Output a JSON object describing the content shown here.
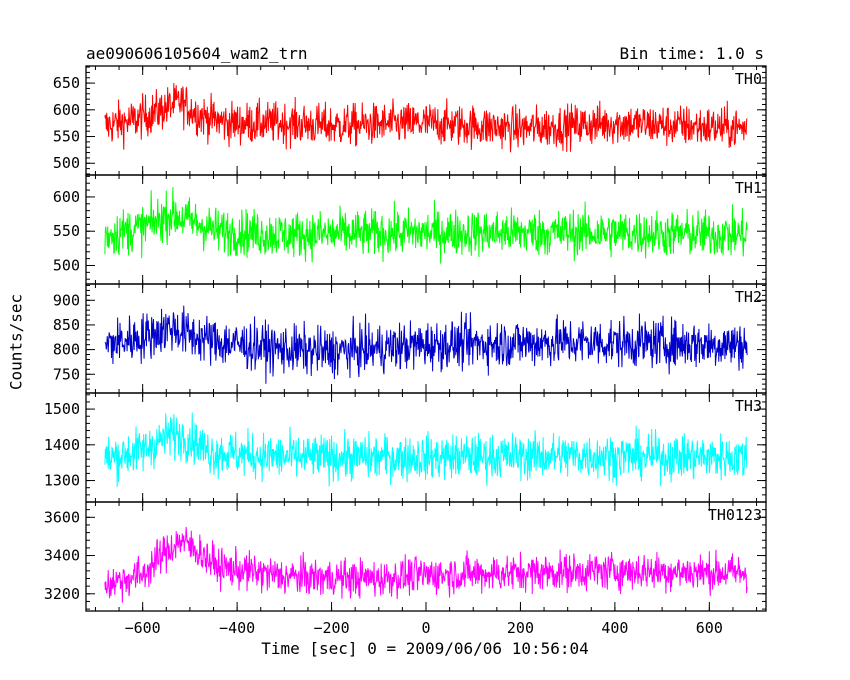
{
  "chart_data": {
    "type": "line",
    "title": "ae090606105604_wam2_trn",
    "annotation": "Bin time: 1.0 s",
    "xlabel": "Time [sec] 0 = 2009/06/06 10:56:04",
    "ylabel": "Counts/sec",
    "xlim": [
      -720,
      720
    ],
    "xticks": [
      -600,
      -400,
      -200,
      0,
      200,
      400,
      600
    ],
    "x_range_of_data": [
      -680,
      680
    ],
    "bin_time_s": 1.0,
    "shared_x_axis": true,
    "panels": [
      {
        "name": "TH0",
        "color": "#ff0000",
        "ylim": [
          478,
          682
        ],
        "yticks": [
          500,
          550,
          600,
          650
        ],
        "profile": [
          [
            -680,
            570
          ],
          [
            -620,
            580
          ],
          [
            -560,
            600
          ],
          [
            -520,
            615
          ],
          [
            -480,
            590
          ],
          [
            -420,
            575
          ],
          [
            -300,
            575
          ],
          [
            -200,
            570
          ],
          [
            0,
            575
          ],
          [
            200,
            565
          ],
          [
            400,
            575
          ],
          [
            680,
            565
          ]
        ],
        "noise": 28
      },
      {
        "name": "TH1",
        "color": "#00ff00",
        "ylim": [
          473,
          632
        ],
        "yticks": [
          500,
          550,
          600
        ],
        "profile": [
          [
            -680,
            545
          ],
          [
            -600,
            555
          ],
          [
            -540,
            575
          ],
          [
            -500,
            565
          ],
          [
            -440,
            550
          ],
          [
            -300,
            545
          ],
          [
            0,
            548
          ],
          [
            300,
            548
          ],
          [
            680,
            545
          ]
        ],
        "noise": 24
      },
      {
        "name": "TH2",
        "color": "#0000cc",
        "ylim": [
          712,
          933
        ],
        "yticks": [
          750,
          800,
          850,
          900
        ],
        "profile": [
          [
            -680,
            810
          ],
          [
            -600,
            825
          ],
          [
            -540,
            845
          ],
          [
            -500,
            830
          ],
          [
            -440,
            815
          ],
          [
            -300,
            800
          ],
          [
            -200,
            795
          ],
          [
            0,
            810
          ],
          [
            300,
            815
          ],
          [
            680,
            810
          ]
        ],
        "noise": 35
      },
      {
        "name": "TH3",
        "color": "#00ffff",
        "ylim": [
          1240,
          1545
        ],
        "yticks": [
          1300,
          1400,
          1500
        ],
        "profile": [
          [
            -680,
            1360
          ],
          [
            -600,
            1385
          ],
          [
            -540,
            1430
          ],
          [
            -500,
            1420
          ],
          [
            -460,
            1380
          ],
          [
            -300,
            1365
          ],
          [
            0,
            1365
          ],
          [
            300,
            1370
          ],
          [
            680,
            1365
          ]
        ],
        "noise": 45
      },
      {
        "name": "TH0123",
        "color": "#ff00ff",
        "ylim": [
          3110,
          3680
        ],
        "yticks": [
          3200,
          3400,
          3600
        ],
        "profile": [
          [
            -680,
            3250
          ],
          [
            -600,
            3300
          ],
          [
            -560,
            3400
          ],
          [
            -520,
            3480
          ],
          [
            -480,
            3420
          ],
          [
            -440,
            3340
          ],
          [
            -300,
            3290
          ],
          [
            -100,
            3280
          ],
          [
            0,
            3300
          ],
          [
            200,
            3310
          ],
          [
            400,
            3320
          ],
          [
            680,
            3310
          ]
        ],
        "noise": 70
      }
    ]
  }
}
